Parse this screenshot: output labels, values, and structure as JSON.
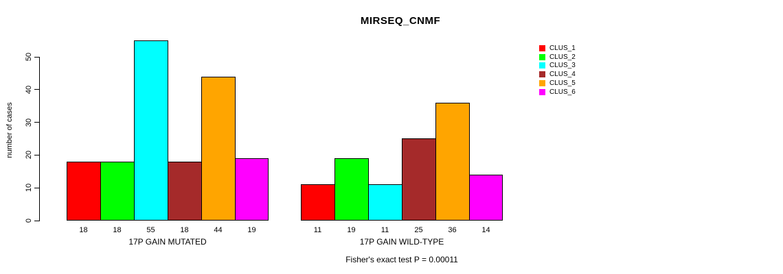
{
  "chart_data": {
    "type": "bar",
    "title": "MIRSEQ_CNMF",
    "ylabel": "number of cases",
    "xlabel": "",
    "categories": [
      "17P GAIN MUTATED",
      "17P GAIN WILD-TYPE"
    ],
    "series": [
      {
        "name": "CLUS_1",
        "color": "#FF0000",
        "values": [
          18,
          11
        ]
      },
      {
        "name": "CLUS_2",
        "color": "#00FF00",
        "values": [
          18,
          19
        ]
      },
      {
        "name": "CLUS_3",
        "color": "#00FFFF",
        "values": [
          55,
          11
        ]
      },
      {
        "name": "CLUS_4",
        "color": "#A52A2A",
        "values": [
          18,
          25
        ]
      },
      {
        "name": "CLUS_5",
        "color": "#FFA500",
        "values": [
          44,
          36
        ]
      },
      {
        "name": "CLUS_6",
        "color": "#FF00FF",
        "values": [
          19,
          14
        ]
      }
    ],
    "yticks": [
      0,
      10,
      20,
      30,
      40,
      50
    ],
    "ylim": [
      0,
      55
    ],
    "grid": false,
    "legend_position": "right",
    "bar_value_labels": true,
    "annotation": "Fisher's exact test P = 0.00011"
  }
}
